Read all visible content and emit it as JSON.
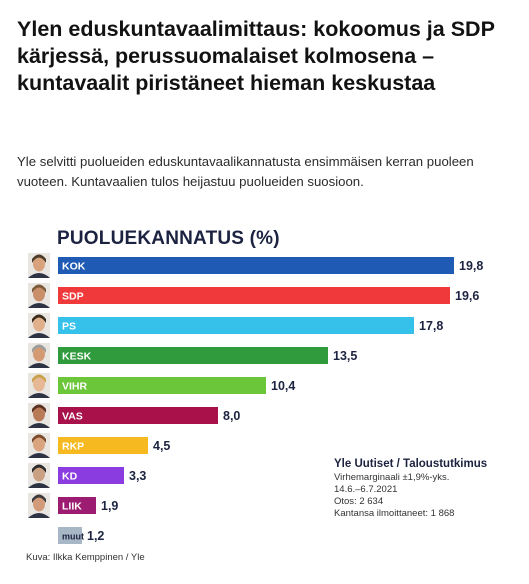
{
  "headline": "Ylen eduskuntavaalimittaus: kokoomus ja SDP kärjessä, perussuomalaiset kolmosena – kuntavaalit piristäneet hieman keskustaa",
  "lead": "Yle selvitti puolueiden eduskuntavaalikannatusta ensimmäisen kerran puoleen vuoteen. Kuntavaalien tulos heijastuu puolueiden suosioon.",
  "chart_data": {
    "type": "bar",
    "orientation": "horizontal",
    "title": "PUOLUEKANNATUS (%)",
    "categories": [
      "KOK",
      "SDP",
      "PS",
      "KESK",
      "VIHR",
      "VAS",
      "RKP",
      "KD",
      "LIIK",
      "muut"
    ],
    "values": [
      19.8,
      19.6,
      17.8,
      13.5,
      10.4,
      8.0,
      4.5,
      3.3,
      1.9,
      1.2
    ],
    "value_labels": [
      "19,8",
      "19,6",
      "17,8",
      "13,5",
      "10,4",
      "8,0",
      "4,5",
      "3,3",
      "1,9",
      "1,2"
    ],
    "colors": [
      "#1f5bb4",
      "#f0393b",
      "#35c1ea",
      "#2f9b3c",
      "#6cc63a",
      "#a8114a",
      "#f6ba20",
      "#8a3ce0",
      "#9c1c72",
      "#a8b7c6"
    ],
    "xlim": [
      0,
      21.5
    ],
    "grid": false,
    "legend": "none"
  },
  "info": {
    "title": "Yle Uutiset / Taloustutkimus",
    "lines": [
      "Virhemarginaali ±1,9%-yks.",
      "14.6.–6.7.2021",
      "Otos: 2 634",
      "Kantansa ilmoittaneet: 1 868"
    ]
  },
  "credit": "Kuva: Ilkka Kemppinen / Yle"
}
